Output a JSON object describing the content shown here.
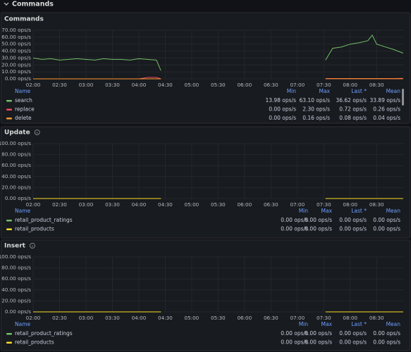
{
  "page_header": {
    "title": "Commands"
  },
  "chart_data": [
    {
      "type": "line",
      "title": "Commands",
      "x": [
        "02:00",
        "02:10",
        "02:20",
        "02:30",
        "02:40",
        "02:50",
        "03:00",
        "03:10",
        "03:20",
        "03:30",
        "03:40",
        "03:50",
        "04:00",
        "04:10",
        "04:20",
        "04:25",
        "06:00",
        "07:32",
        "07:40",
        "07:50",
        "08:00",
        "08:10",
        "08:20",
        "08:25",
        "08:30",
        "08:40",
        "08:50",
        "09:00"
      ],
      "xlim": [
        "02:00",
        "09:01"
      ],
      "xticks": [
        "02:00",
        "02:30",
        "03:00",
        "03:30",
        "04:00",
        "04:30",
        "05:00",
        "05:30",
        "06:00",
        "06:30",
        "07:00",
        "07:30",
        "08:00",
        "08:30"
      ],
      "ylim": [
        0,
        70
      ],
      "yticks": [
        {
          "value": 0,
          "label": "0.00 ops/s"
        },
        {
          "value": 10,
          "label": "10.00 ops/s"
        },
        {
          "value": 20,
          "label": "20.00 ops/s"
        },
        {
          "value": 30,
          "label": "30.00 ops/s"
        },
        {
          "value": 40,
          "label": "40.00 ops/s"
        },
        {
          "value": 50,
          "label": "50.00 ops/s"
        },
        {
          "value": 60,
          "label": "60.00 ops/s"
        },
        {
          "value": 70,
          "label": "70.00 ops/s"
        }
      ],
      "grid": true,
      "legend_columns": [
        "Name",
        "Min",
        "Max",
        "Last *",
        "Mean"
      ],
      "series": [
        {
          "name": "search",
          "color": "#73bf69",
          "values": [
            30,
            28,
            29,
            27,
            28,
            29,
            28,
            27,
            29,
            28,
            28,
            27,
            29,
            28,
            27,
            12,
            null,
            27,
            44,
            46,
            50,
            52,
            55,
            63,
            50,
            46,
            42,
            37
          ],
          "legend_values": [
            "13.98 ops/s",
            "63.10 ops/s",
            "36.62 ops/s",
            "33.89 ops/s"
          ]
        },
        {
          "name": "replace",
          "color": "#f2495c",
          "values": [
            0,
            0,
            0,
            0,
            0,
            0,
            0,
            0,
            0,
            0,
            0,
            0,
            0,
            2,
            2,
            0,
            null,
            0.5,
            0.5,
            0.5,
            0.5,
            0.5,
            0.5,
            0.5,
            0.5,
            0.5,
            0.5,
            0.7
          ],
          "legend_values": [
            "0.00 ops/s",
            "2.30 ops/s",
            "0.72 ops/s",
            "0.26 ops/s"
          ]
        },
        {
          "name": "delete",
          "color": "#ff9830",
          "values": [
            0,
            0,
            0,
            0,
            0,
            0,
            0,
            0,
            0,
            0,
            0,
            0,
            0,
            0,
            0,
            0,
            null,
            0.1,
            0.1,
            0.1,
            0.1,
            0.1,
            0.1,
            0.1,
            0.1,
            0.1,
            0.1,
            0.1
          ],
          "legend_values": [
            "0.00 ops/s",
            "0.16 ops/s",
            "0.08 ops/s",
            "0.04 ops/s"
          ]
        }
      ]
    },
    {
      "type": "line",
      "title": "Update",
      "x": [
        "02:00",
        "04:25",
        "06:00",
        "07:32",
        "09:00"
      ],
      "xlim": [
        "02:00",
        "09:01"
      ],
      "xticks": [
        "02:00",
        "02:30",
        "03:00",
        "03:30",
        "04:00",
        "04:30",
        "05:00",
        "05:30",
        "06:00",
        "06:30",
        "07:00",
        "07:30",
        "08:00",
        "08:30"
      ],
      "ylim": [
        0,
        100
      ],
      "yticks": [
        {
          "value": 0,
          "label": "0.00 ops/s"
        },
        {
          "value": 20,
          "label": "20.00 ops/s"
        },
        {
          "value": 40,
          "label": "40.00 ops/s"
        },
        {
          "value": 60,
          "label": "60.00 ops/s"
        },
        {
          "value": 80,
          "label": "80.00 ops/s"
        },
        {
          "value": 100,
          "label": "100.00 ops/s"
        }
      ],
      "grid": true,
      "legend_columns": [
        "Name",
        "Min",
        "Max",
        "Last *",
        "Mean"
      ],
      "series": [
        {
          "name": "retail_product_ratings",
          "color": "#73bf69",
          "values": [
            0,
            0,
            null,
            0,
            0
          ],
          "legend_values": [
            "0.00 ops/s",
            "0.00 ops/s",
            "0.00 ops/s",
            "0.00 ops/s"
          ]
        },
        {
          "name": "retail_products",
          "color": "#fade2a",
          "values": [
            0,
            0,
            null,
            0,
            0
          ],
          "legend_values": [
            "0.00 ops/s",
            "0.00 ops/s",
            "0.00 ops/s",
            "0.00 ops/s"
          ]
        }
      ]
    },
    {
      "type": "line",
      "title": "Insert",
      "x": [
        "02:00",
        "04:25",
        "06:00",
        "07:32",
        "09:00"
      ],
      "xlim": [
        "02:00",
        "09:01"
      ],
      "xticks": [
        "02:00",
        "02:30",
        "03:00",
        "03:30",
        "04:00",
        "04:30",
        "05:00",
        "05:30",
        "06:00",
        "06:30",
        "07:00",
        "07:30",
        "08:00",
        "08:30"
      ],
      "ylim": [
        0,
        100
      ],
      "yticks": [
        {
          "value": 0,
          "label": "0.00 ops/s"
        },
        {
          "value": 20,
          "label": "20.00 ops/s"
        },
        {
          "value": 40,
          "label": "40.00 ops/s"
        },
        {
          "value": 60,
          "label": "60.00 ops/s"
        },
        {
          "value": 80,
          "label": "80.00 ops/s"
        },
        {
          "value": 100,
          "label": "100.00 ops/s"
        }
      ],
      "grid": true,
      "legend_columns": [
        "Name",
        "Min",
        "Max",
        "Last *",
        "Mean"
      ],
      "series": [
        {
          "name": "retail_product_ratings",
          "color": "#73bf69",
          "values": [
            0,
            0,
            null,
            0,
            0
          ],
          "legend_values": [
            "0.00 ops/s",
            "0.00 ops/s",
            "0.00 ops/s",
            "0.00 ops/s"
          ]
        },
        {
          "name": "retail_products",
          "color": "#fade2a",
          "values": [
            0,
            0,
            null,
            0,
            0
          ],
          "legend_values": [
            "0.00 ops/s",
            "0.00 ops/s",
            "0.00 ops/s",
            "0.00 ops/s"
          ]
        }
      ]
    }
  ]
}
